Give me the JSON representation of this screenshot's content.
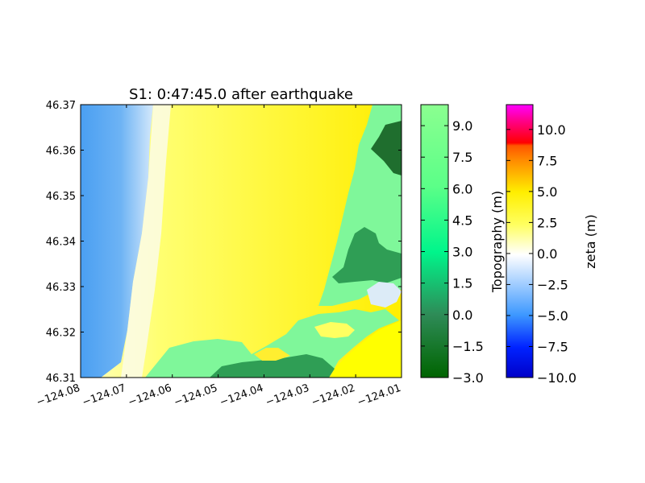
{
  "chart_data": {
    "type": "heatmap",
    "title": "S1: 0:47:45.0 after earthquake",
    "xlabel": "",
    "ylabel": "",
    "xlim": [
      -124.08,
      -124.01
    ],
    "ylim": [
      46.31,
      46.37
    ],
    "x_ticks": [
      "−124.08",
      "−124.07",
      "−124.06",
      "−124.05",
      "−124.04",
      "−124.03",
      "−124.02",
      "−124.01"
    ],
    "x_tick_values": [
      -124.08,
      -124.07,
      -124.06,
      -124.05,
      -124.04,
      -124.03,
      -124.02,
      -124.01
    ],
    "y_ticks": [
      "46.31",
      "46.32",
      "46.33",
      "46.34",
      "46.35",
      "46.36",
      "46.37"
    ],
    "y_tick_values": [
      46.31,
      46.32,
      46.33,
      46.34,
      46.35,
      46.36,
      46.37
    ],
    "grid": false,
    "colorbars": [
      {
        "label": "Topography (m)",
        "range": [
          -3.0,
          10.0
        ],
        "ticks": [
          "−3.0",
          "−1.5",
          "0.0",
          "1.5",
          "3.0",
          "4.5",
          "6.0",
          "7.5",
          "9.0"
        ],
        "tick_values": [
          -3.0,
          -1.5,
          0.0,
          1.5,
          3.0,
          4.5,
          6.0,
          7.5,
          9.0
        ],
        "colors": [
          "#006400",
          "#2e8b57",
          "#00f58b",
          "#7fff8a"
        ]
      },
      {
        "label": "zeta (m)",
        "range": [
          -10.0,
          12.0
        ],
        "ticks": [
          "−10.0",
          "−7.5",
          "−5.0",
          "−2.5",
          "0.0",
          "2.5",
          "5.0",
          "7.5",
          "10.0"
        ],
        "tick_values": [
          -10.0,
          -7.5,
          -5.0,
          -2.5,
          0.0,
          2.5,
          5.0,
          7.5,
          10.0
        ],
        "colors": [
          "#0000c8",
          "#0044ff",
          "#4aa3ff",
          "#ffffff",
          "#ffff00",
          "#ff8800",
          "#ff0000",
          "#ff00ff"
        ]
      }
    ],
    "colors": {
      "ocean_deep": "#4a9ff2",
      "ocean_light": "#cfe4fb",
      "beach": "#ffffd8",
      "flood": "#ffff28",
      "land_low": "#2f9e55",
      "land_mid": "#3dd17a",
      "land_high": "#7ff79a",
      "land_dark": "#1f6e2e"
    }
  }
}
